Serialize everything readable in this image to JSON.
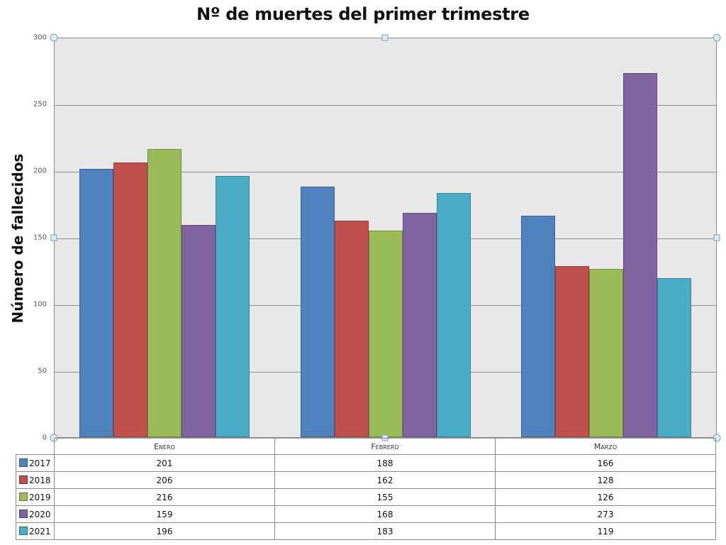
{
  "chart_data": {
    "type": "bar",
    "title": "Nº de muertes del primer trimestre",
    "xlabel": "",
    "ylabel": "Número de fallecidos",
    "ylim": [
      0,
      300
    ],
    "yticks": [
      "0",
      "50",
      "100",
      "150",
      "200",
      "250",
      "300"
    ],
    "grid": true,
    "legend_position": "data-table",
    "categories": [
      "Enero",
      "Febrero",
      "Marzo"
    ],
    "series": [
      {
        "name": "2017",
        "color": "#4f81bd",
        "values": [
          201,
          188,
          166
        ]
      },
      {
        "name": "2018",
        "color": "#c0504d",
        "values": [
          206,
          162,
          128
        ]
      },
      {
        "name": "2019",
        "color": "#9bbb59",
        "values": [
          216,
          155,
          126
        ]
      },
      {
        "name": "2020",
        "color": "#8064a2",
        "values": [
          159,
          168,
          273
        ]
      },
      {
        "name": "2021",
        "color": "#4bacc6",
        "values": [
          196,
          183,
          119
        ]
      }
    ]
  }
}
